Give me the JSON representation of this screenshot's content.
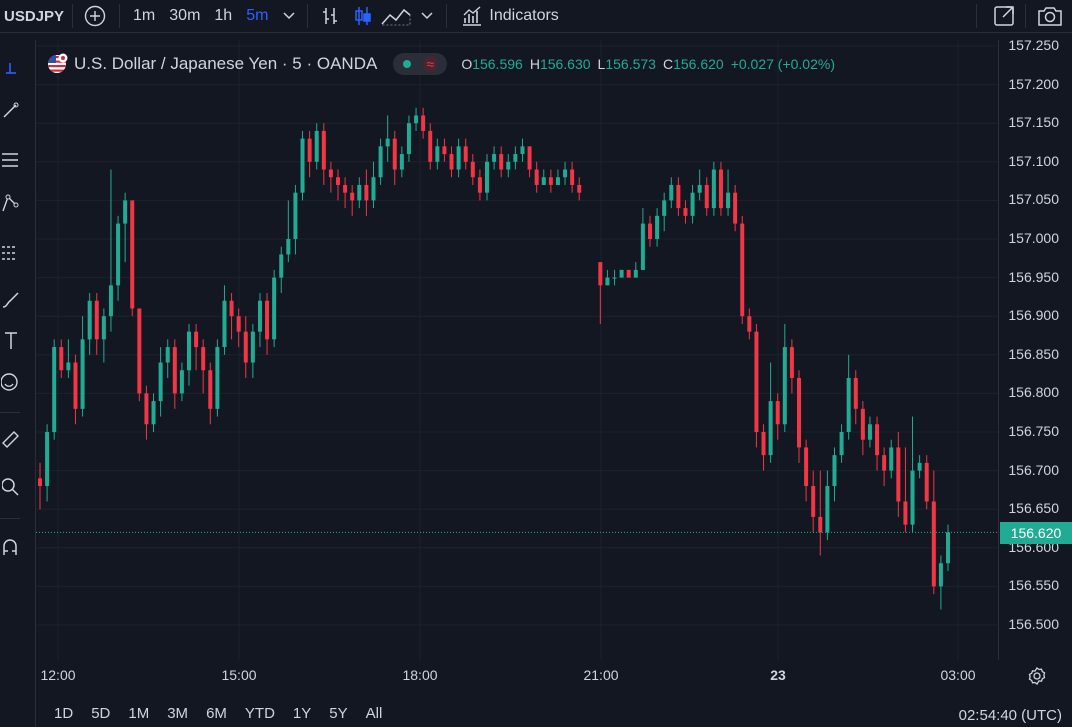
{
  "toolbar": {
    "symbol": "USDJPY",
    "intervals": [
      "1m",
      "30m",
      "1h",
      "5m"
    ],
    "active_interval": "5m",
    "indicators_label": "Indicators",
    "colors": {
      "active": "#2962ff"
    }
  },
  "legend": {
    "title": "U.S. Dollar / Japanese Yen · 5 · OANDA",
    "o_key": "O",
    "o_val": "156.596",
    "h_key": "H",
    "h_val": "156.630",
    "l_key": "L",
    "l_val": "156.573",
    "c_key": "C",
    "c_val": "156.620",
    "change": "+0.027 (+0.02%)"
  },
  "price_axis": {
    "labels": [
      "157.250",
      "157.200",
      "157.150",
      "157.100",
      "157.050",
      "157.000",
      "156.950",
      "156.900",
      "156.850",
      "156.800",
      "156.750",
      "156.700",
      "156.650",
      "156.600",
      "156.550",
      "156.500"
    ],
    "current_price": "156.620"
  },
  "time_axis": {
    "labels": [
      "12:00",
      "15:00",
      "18:00",
      "21:00",
      "23",
      "03:00"
    ]
  },
  "ranges": [
    "1D",
    "5D",
    "1M",
    "3M",
    "6M",
    "YTD",
    "1Y",
    "5Y",
    "All"
  ],
  "clock": "02:54:40 (UTC)",
  "colors": {
    "up": "#22ab94",
    "down": "#f23645",
    "grid": "#1e222d",
    "bg": "#131722"
  },
  "chart_data": {
    "type": "candlestick",
    "title": "U.S. Dollar / Japanese Yen · 5 · OANDA",
    "ylim": [
      156.48,
      157.26
    ],
    "x_ticks": [
      "12:00",
      "15:00",
      "18:00",
      "21:00",
      "23",
      "03:00"
    ],
    "series": [
      {
        "name": "USDJPY",
        "candles": [
          [
            156.69,
            156.68,
            156.71,
            156.65
          ],
          [
            156.68,
            156.75,
            156.76,
            156.66
          ],
          [
            156.75,
            156.86,
            156.87,
            156.74
          ],
          [
            156.86,
            156.83,
            156.87,
            156.82
          ],
          [
            156.83,
            156.84,
            156.87,
            156.82
          ],
          [
            156.84,
            156.78,
            156.85,
            156.76
          ],
          [
            156.78,
            156.87,
            156.9,
            156.77
          ],
          [
            156.87,
            156.92,
            156.93,
            156.85
          ],
          [
            156.92,
            156.87,
            156.93,
            156.85
          ],
          [
            156.87,
            156.9,
            156.91,
            156.84
          ],
          [
            156.9,
            156.94,
            157.09,
            156.88
          ],
          [
            156.94,
            157.02,
            157.03,
            156.92
          ],
          [
            157.02,
            157.05,
            157.06,
            156.97
          ],
          [
            157.05,
            156.91,
            157.05,
            156.9
          ],
          [
            156.91,
            156.8,
            156.91,
            156.79
          ],
          [
            156.8,
            156.76,
            156.81,
            156.74
          ],
          [
            156.76,
            156.79,
            156.8,
            156.75
          ],
          [
            156.79,
            156.84,
            156.86,
            156.77
          ],
          [
            156.84,
            156.86,
            156.87,
            156.82
          ],
          [
            156.86,
            156.8,
            156.87,
            156.78
          ],
          [
            156.8,
            156.83,
            156.84,
            156.79
          ],
          [
            156.83,
            156.88,
            156.89,
            156.81
          ],
          [
            156.88,
            156.86,
            156.89,
            156.83
          ],
          [
            156.86,
            156.83,
            156.87,
            156.8
          ],
          [
            156.83,
            156.78,
            156.84,
            156.76
          ],
          [
            156.78,
            156.86,
            156.87,
            156.77
          ],
          [
            156.86,
            156.92,
            156.94,
            156.85
          ],
          [
            156.92,
            156.9,
            156.93,
            156.87
          ],
          [
            156.9,
            156.88,
            156.91,
            156.86
          ],
          [
            156.88,
            156.84,
            156.9,
            156.82
          ],
          [
            156.84,
            156.88,
            156.89,
            156.82
          ],
          [
            156.88,
            156.92,
            156.93,
            156.86
          ],
          [
            156.92,
            156.87,
            156.93,
            156.85
          ],
          [
            156.87,
            156.95,
            156.96,
            156.86
          ],
          [
            156.95,
            156.98,
            156.99,
            156.93
          ],
          [
            156.98,
            157.0,
            157.05,
            156.97
          ],
          [
            157.0,
            157.06,
            157.07,
            156.98
          ],
          [
            157.06,
            157.13,
            157.14,
            157.05
          ],
          [
            157.13,
            157.1,
            157.14,
            157.08
          ],
          [
            157.1,
            157.14,
            157.15,
            157.09
          ],
          [
            157.14,
            157.09,
            157.15,
            157.07
          ],
          [
            157.09,
            157.08,
            157.1,
            157.06
          ],
          [
            157.08,
            157.07,
            157.09,
            157.05
          ],
          [
            157.07,
            157.06,
            157.08,
            157.04
          ],
          [
            157.06,
            157.05,
            157.07,
            157.03
          ],
          [
            157.05,
            157.07,
            157.08,
            157.04
          ],
          [
            157.07,
            157.05,
            157.09,
            157.03
          ],
          [
            157.05,
            157.08,
            157.1,
            157.04
          ],
          [
            157.08,
            157.12,
            157.13,
            157.07
          ],
          [
            157.12,
            157.13,
            157.16,
            157.1
          ],
          [
            157.13,
            157.09,
            157.14,
            157.07
          ],
          [
            157.09,
            157.11,
            157.12,
            157.08
          ],
          [
            157.11,
            157.15,
            157.16,
            157.1
          ],
          [
            157.15,
            157.16,
            157.17,
            157.14
          ],
          [
            157.16,
            157.14,
            157.17,
            157.13
          ],
          [
            157.14,
            157.1,
            157.15,
            157.09
          ],
          [
            157.1,
            157.12,
            157.13,
            157.09
          ],
          [
            157.12,
            157.11,
            157.13,
            157.1
          ],
          [
            157.11,
            157.09,
            157.12,
            157.08
          ],
          [
            157.09,
            157.12,
            157.13,
            157.08
          ],
          [
            157.12,
            157.1,
            157.13,
            157.09
          ],
          [
            157.1,
            157.08,
            157.11,
            157.07
          ],
          [
            157.08,
            157.06,
            157.09,
            157.05
          ],
          [
            157.06,
            157.1,
            157.11,
            157.05
          ],
          [
            157.1,
            157.11,
            157.12,
            157.09
          ],
          [
            157.11,
            157.09,
            157.12,
            157.08
          ],
          [
            157.09,
            157.1,
            157.11,
            157.08
          ],
          [
            157.1,
            157.11,
            157.12,
            157.09
          ],
          [
            157.11,
            157.12,
            157.13,
            157.1
          ],
          [
            157.12,
            157.09,
            157.12,
            157.08
          ],
          [
            157.09,
            157.07,
            157.1,
            157.06
          ],
          [
            157.07,
            157.08,
            157.09,
            157.07
          ],
          [
            157.08,
            157.07,
            157.09,
            157.06
          ],
          [
            157.07,
            157.08,
            157.09,
            157.07
          ],
          [
            157.08,
            157.09,
            157.1,
            157.07
          ],
          [
            157.09,
            157.07,
            157.1,
            157.06
          ],
          [
            157.07,
            157.06,
            157.08,
            157.05
          ],
          [
            156.97,
            156.94,
            156.97,
            156.89
          ],
          [
            156.94,
            156.95,
            156.96,
            156.94
          ],
          [
            156.95,
            156.95,
            156.96,
            156.94
          ],
          [
            156.95,
            156.96,
            156.96,
            156.95
          ],
          [
            156.96,
            156.95,
            156.96,
            156.95
          ],
          [
            156.95,
            156.96,
            156.97,
            156.95
          ],
          [
            156.96,
            157.02,
            157.04,
            156.96
          ],
          [
            157.02,
            157.0,
            157.03,
            156.99
          ],
          [
            157.0,
            157.03,
            157.04,
            156.99
          ],
          [
            157.03,
            157.05,
            157.06,
            157.01
          ],
          [
            157.05,
            157.07,
            157.08,
            157.04
          ],
          [
            157.07,
            157.04,
            157.08,
            157.03
          ],
          [
            157.04,
            157.03,
            157.05,
            157.02
          ],
          [
            157.03,
            157.06,
            157.07,
            157.02
          ],
          [
            157.06,
            157.07,
            157.09,
            157.05
          ],
          [
            157.07,
            157.04,
            157.08,
            157.03
          ],
          [
            157.04,
            157.09,
            157.1,
            157.03
          ],
          [
            157.09,
            157.04,
            157.1,
            157.03
          ],
          [
            157.04,
            157.06,
            157.09,
            157.03
          ],
          [
            157.06,
            157.02,
            157.07,
            157.01
          ],
          [
            157.02,
            156.9,
            157.03,
            156.89
          ],
          [
            156.9,
            156.88,
            156.91,
            156.87
          ],
          [
            156.88,
            156.75,
            156.89,
            156.73
          ],
          [
            156.75,
            156.72,
            156.76,
            156.7
          ],
          [
            156.72,
            156.79,
            156.84,
            156.71
          ],
          [
            156.79,
            156.76,
            156.8,
            156.74
          ],
          [
            156.76,
            156.86,
            156.89,
            156.75
          ],
          [
            156.86,
            156.82,
            156.87,
            156.8
          ],
          [
            156.82,
            156.73,
            156.83,
            156.71
          ],
          [
            156.73,
            156.68,
            156.74,
            156.66
          ],
          [
            156.68,
            156.64,
            156.7,
            156.62
          ],
          [
            156.64,
            156.62,
            156.7,
            156.59
          ],
          [
            156.62,
            156.68,
            156.7,
            156.61
          ],
          [
            156.68,
            156.72,
            156.73,
            156.66
          ],
          [
            156.72,
            156.75,
            156.76,
            156.71
          ],
          [
            156.75,
            156.82,
            156.85,
            156.74
          ],
          [
            156.82,
            156.78,
            156.83,
            156.76
          ],
          [
            156.78,
            156.74,
            156.79,
            156.72
          ],
          [
            156.74,
            156.76,
            156.77,
            156.73
          ],
          [
            156.76,
            156.72,
            156.77,
            156.7
          ],
          [
            156.72,
            156.7,
            156.73,
            156.68
          ],
          [
            156.7,
            156.73,
            156.74,
            156.69
          ],
          [
            156.73,
            156.66,
            156.75,
            156.64
          ],
          [
            156.66,
            156.63,
            156.73,
            156.62
          ],
          [
            156.63,
            156.7,
            156.77,
            156.62
          ],
          [
            156.7,
            156.71,
            156.72,
            156.69
          ],
          [
            156.71,
            156.66,
            156.72,
            156.65
          ],
          [
            156.66,
            156.55,
            156.7,
            156.54
          ],
          [
            156.55,
            156.58,
            156.59,
            156.52
          ],
          [
            156.58,
            156.62,
            156.63,
            156.57
          ]
        ]
      }
    ]
  }
}
